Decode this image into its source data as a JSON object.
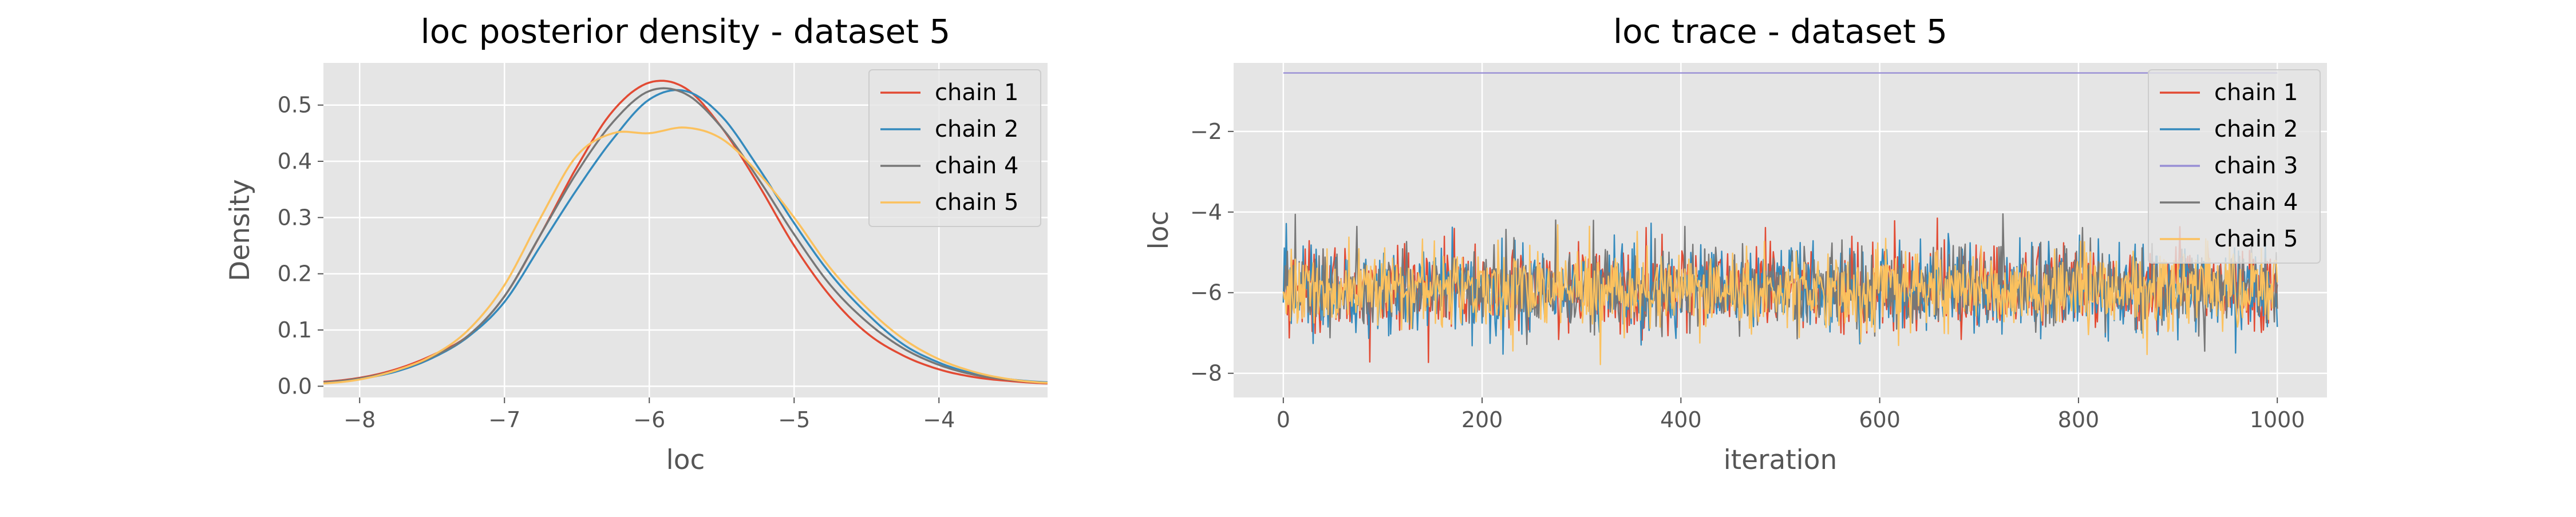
{
  "chart_data": [
    {
      "type": "line",
      "title": "loc posterior density - dataset 5",
      "xlabel": "loc",
      "ylabel": "Density",
      "xlim": [
        -8.25,
        -3.25
      ],
      "ylim": [
        -0.02,
        0.575
      ],
      "xticks": [
        -8,
        -7,
        -6,
        -5,
        -4
      ],
      "xtick_labels": [
        "−8",
        "−7",
        "−6",
        "−5",
        "−4"
      ],
      "yticks": [
        0.0,
        0.1,
        0.2,
        0.3,
        0.4,
        0.5
      ],
      "ytick_labels": [
        "0.0",
        "0.1",
        "0.2",
        "0.3",
        "0.4",
        "0.5"
      ],
      "grid": true,
      "legend_position": "top-right",
      "x": [
        -8.25,
        -8.0,
        -7.75,
        -7.5,
        -7.25,
        -7.0,
        -6.75,
        -6.5,
        -6.25,
        -6.0,
        -5.75,
        -5.5,
        -5.25,
        -5.0,
        -4.75,
        -4.5,
        -4.25,
        -4.0,
        -3.75,
        -3.5,
        -3.25
      ],
      "series": [
        {
          "name": "chain 1",
          "color": "#E24A33",
          "values": [
            0.008,
            0.015,
            0.03,
            0.055,
            0.09,
            0.16,
            0.27,
            0.39,
            0.49,
            0.54,
            0.53,
            0.46,
            0.36,
            0.25,
            0.16,
            0.095,
            0.055,
            0.03,
            0.016,
            0.009,
            0.005
          ]
        },
        {
          "name": "chain 2",
          "color": "#348ABD",
          "values": [
            0.006,
            0.013,
            0.026,
            0.05,
            0.088,
            0.15,
            0.25,
            0.35,
            0.44,
            0.51,
            0.525,
            0.48,
            0.39,
            0.29,
            0.2,
            0.13,
            0.075,
            0.042,
            0.022,
            0.012,
            0.007
          ]
        },
        {
          "name": "chain 4",
          "color": "#777777",
          "values": [
            0.007,
            0.014,
            0.028,
            0.052,
            0.09,
            0.16,
            0.27,
            0.38,
            0.47,
            0.525,
            0.52,
            0.46,
            0.37,
            0.27,
            0.18,
            0.115,
            0.068,
            0.038,
            0.02,
            0.011,
            0.006
          ]
        },
        {
          "name": "chain 5",
          "color": "#FBC15E",
          "values": [
            0.005,
            0.012,
            0.028,
            0.054,
            0.1,
            0.18,
            0.3,
            0.41,
            0.45,
            0.45,
            0.46,
            0.44,
            0.38,
            0.3,
            0.21,
            0.14,
            0.085,
            0.048,
            0.025,
            0.012,
            0.006
          ]
        }
      ]
    },
    {
      "type": "line",
      "title": "loc trace - dataset 5",
      "xlabel": "iteration",
      "ylabel": "loc",
      "xlim": [
        -50,
        1050
      ],
      "ylim": [
        -8.6,
        -0.3
      ],
      "xticks": [
        0,
        200,
        400,
        600,
        800,
        1000
      ],
      "xtick_labels": [
        "0",
        "200",
        "400",
        "600",
        "800",
        "1000"
      ],
      "yticks": [
        -8,
        -6,
        -4,
        -2
      ],
      "ytick_labels": [
        "−8",
        "−6",
        "−4",
        "−2"
      ],
      "grid": true,
      "legend_position": "top-right",
      "n_iterations": 1000,
      "series": [
        {
          "name": "chain 1",
          "color": "#E24A33",
          "center": -5.95,
          "spread": 0.75,
          "values": [
            -6.1,
            -5.4,
            -4.9,
            -6.3,
            -5.8,
            -5.1,
            -6.6,
            -5.9,
            -4.7,
            -6.0,
            -5.5,
            -6.8,
            -5.2,
            -5.9,
            -6.4,
            -4.6,
            -5.7,
            -6.2,
            -5.3,
            -7.1,
            -5.8,
            -6.0,
            -4.9,
            -6.5,
            -5.6,
            -6.1,
            -5.0,
            -6.9,
            -5.4,
            -6.3,
            -5.7,
            -4.5,
            -6.0,
            -5.9,
            -6.6,
            -5.2,
            -6.2,
            -7.4,
            -5.5,
            -6.0,
            -5.1,
            -6.4,
            -5.8,
            -4.8,
            -6.1,
            -5.6,
            -6.7,
            -5.3,
            -6.0,
            -5.9
          ]
        },
        {
          "name": "chain 2",
          "color": "#348ABD",
          "center": -5.95,
          "spread": 0.75,
          "values": [
            -7.3,
            -5.2,
            -6.0,
            -4.4,
            -6.5,
            -5.7,
            -6.2,
            -5.0,
            -6.8,
            -5.5,
            -6.1,
            -4.8,
            -6.3,
            -5.9,
            -7.0,
            -5.4,
            -6.0,
            -5.1,
            -6.6,
            -5.8,
            -4.2,
            -6.2,
            -5.6,
            -6.9,
            -5.3,
            -6.1,
            -5.8,
            -6.4,
            -5.0,
            -6.0,
            -7.5,
            -5.5,
            -6.3,
            -4.7,
            -6.0,
            -5.9,
            -6.6,
            -5.2,
            -6.1,
            -5.7,
            -6.8,
            -4.9,
            -6.2,
            -5.6,
            -6.0,
            -7.2,
            -5.4,
            -6.3,
            -5.8,
            -6.1
          ]
        },
        {
          "name": "chain 3",
          "color": "#988ED5",
          "center": -0.55,
          "spread": 0.0,
          "values": [
            -0.55,
            -0.55
          ]
        },
        {
          "name": "chain 4",
          "color": "#777777",
          "center": -5.95,
          "spread": 0.75,
          "values": [
            -5.8,
            -6.4,
            -5.1,
            -6.0,
            -4.3,
            -6.7,
            -5.5,
            -6.2,
            -5.9,
            -7.0,
            -5.3,
            -6.1,
            -4.0,
            -6.4,
            -5.7,
            -6.0,
            -5.2,
            -6.8,
            -5.9,
            -6.3,
            -5.0,
            -6.5,
            -5.6,
            -6.0,
            -3.6,
            -6.2,
            -5.8,
            -7.1,
            -5.4,
            -6.0,
            -5.9,
            -6.6,
            -5.1,
            -6.3,
            -5.7,
            -6.0,
            -4.8,
            -6.4,
            -5.5,
            -6.9,
            -5.8,
            -6.1,
            -5.3,
            -6.0,
            -5.9,
            -6.7,
            -5.2,
            -6.2,
            -5.6,
            -6.0
          ]
        },
        {
          "name": "chain 5",
          "color": "#FBC15E",
          "center": -5.95,
          "spread": 0.75,
          "values": [
            -5.6,
            -6.1,
            -5.0,
            -6.5,
            -5.8,
            -6.0,
            -4.6,
            -6.3,
            -5.5,
            -6.9,
            -5.9,
            -6.2,
            -5.1,
            -6.0,
            -5.7,
            -6.6,
            -4.9,
            -6.1,
            -5.4,
            -7.8,
            -5.8,
            -6.0,
            -5.2,
            -6.4,
            -5.6,
            -6.0,
            -4.8,
            -6.3,
            -5.9,
            -6.1,
            -5.3,
            -6.7,
            -5.7,
            -6.0,
            -5.0,
            -6.5,
            -5.8,
            -6.2,
            -4.7,
            -6.0,
            -5.6,
            -6.4,
            -5.9,
            -6.1,
            -5.2,
            -6.8,
            -5.7,
            -6.0,
            -5.5,
            -6.2
          ]
        }
      ]
    }
  ]
}
